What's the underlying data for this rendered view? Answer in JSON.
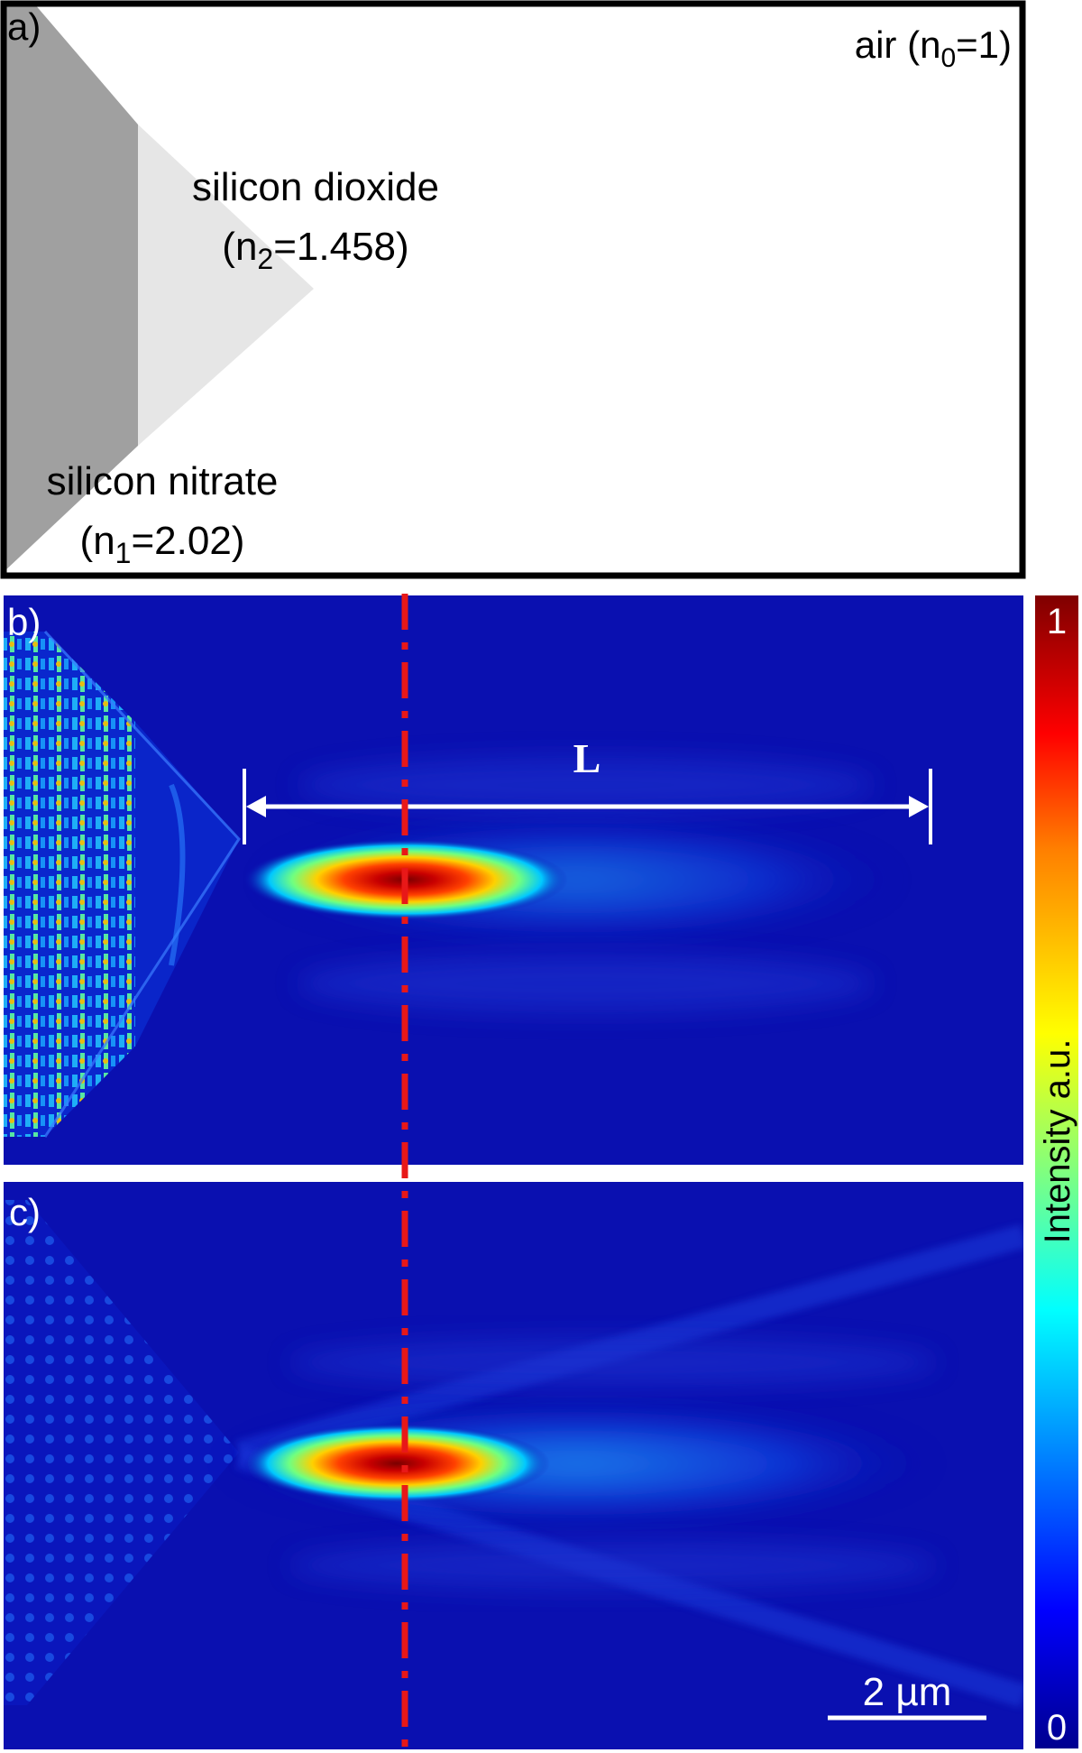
{
  "panel_a": {
    "label": "a)",
    "air": {
      "text": "air (n",
      "sub": "0",
      "tail": "=1)"
    },
    "silicon_dioxide": {
      "name": "silicon dioxide",
      "index_text": "(n",
      "index_sub": "2",
      "index_tail": "=1.458)"
    },
    "silicon_nitrate": {
      "name": "silicon nitrate",
      "index_text": "(n",
      "index_sub": "1",
      "index_tail": "=2.02)"
    },
    "colors": {
      "nitride": "#a0a0a0",
      "oxide": "#e6e6e6",
      "frame": "#000000"
    }
  },
  "panel_b": {
    "label": "b)",
    "length_marker": "L"
  },
  "panel_c": {
    "label": "c)",
    "scale_bar": "2 µm"
  },
  "colorbar": {
    "max": "1",
    "min": "0",
    "title": "Intensity a.u.",
    "colormap": "jet",
    "stops": [
      "#00008f",
      "#0000ff",
      "#00ffff",
      "#ffff00",
      "#ff7f00",
      "#ff0000",
      "#7f0000"
    ]
  },
  "colors": {
    "field_background": "#0a10b0",
    "axis_line": "#e81818",
    "annotation": "#ffffff"
  }
}
